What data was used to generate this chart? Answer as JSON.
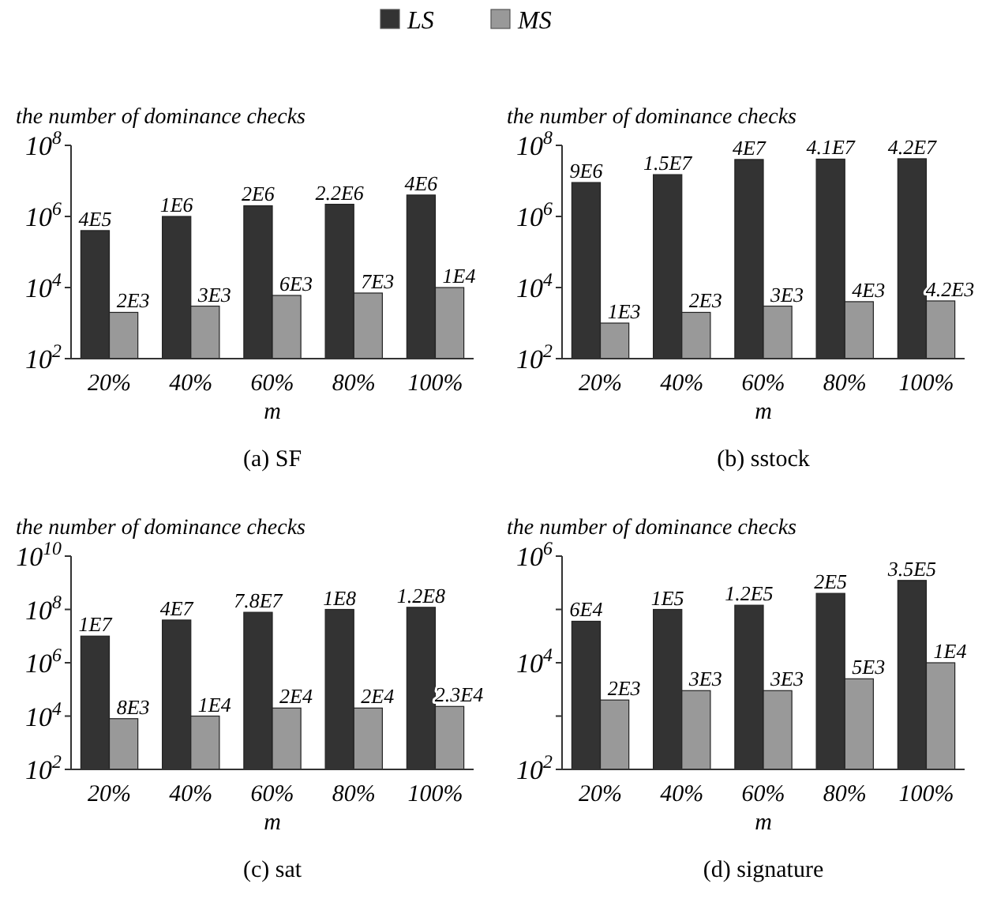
{
  "chart_data": [
    {
      "type": "bar",
      "title": "(a) SF",
      "xlabel": "m",
      "ylabel": "the number of dominance checks",
      "categories": [
        "20%",
        "40%",
        "60%",
        "80%",
        "100%"
      ],
      "log": "y",
      "ylim": [
        100,
        100000000
      ],
      "yticks": [
        {
          "value": 100,
          "label": "10$^{2}$"
        },
        {
          "value": 10000,
          "label": "10$^{4}$"
        },
        {
          "value": 1000000,
          "label": "10$^{6}$"
        },
        {
          "value": 100000000,
          "label": "10$^{8}$"
        }
      ],
      "legend": "top",
      "grid": false,
      "series": [
        {
          "name": "LS",
          "color": "#333333",
          "values": [
            400000,
            1000000,
            2000000,
            2200000,
            4000000
          ],
          "value_labels": [
            "4E5",
            "1E6",
            "2E6",
            "2.2E6",
            "4E6"
          ]
        },
        {
          "name": "MS",
          "color": "#999999",
          "values": [
            2000,
            3000,
            6000,
            7000,
            10000
          ],
          "value_labels": [
            "2E3",
            "3E3",
            "6E3",
            "7E3",
            "1E4"
          ]
        }
      ]
    },
    {
      "type": "bar",
      "title": "(b) sstock",
      "xlabel": "m",
      "ylabel": "the number of dominance checks",
      "categories": [
        "20%",
        "40%",
        "60%",
        "80%",
        "100%"
      ],
      "log": "y",
      "ylim": [
        100,
        100000000
      ],
      "yticks": [
        {
          "value": 100,
          "label": "10$^{2}$"
        },
        {
          "value": 10000,
          "label": "10$^{4}$"
        },
        {
          "value": 1000000,
          "label": "10$^{6}$"
        },
        {
          "value": 100000000,
          "label": "10$^{8}$"
        }
      ],
      "grid": false,
      "series": [
        {
          "color": "#333333",
          "values": [
            9000000,
            15000000,
            40000000,
            41000000,
            42000000
          ],
          "value_labels": [
            "9E6",
            "1.5E7",
            "4E7",
            "4.1E7",
            "4.2E7"
          ]
        },
        {
          "color": "#999999",
          "values": [
            1000,
            2000,
            3000,
            4000,
            4200
          ],
          "value_labels": [
            "1E3",
            "2E3",
            "3E3",
            "4E3",
            "4.2E3"
          ]
        }
      ]
    },
    {
      "type": "bar",
      "title": "(c) sat",
      "xlabel": "m",
      "ylabel": "the number of dominance checks",
      "categories": [
        "20%",
        "40%",
        "60%",
        "80%",
        "100%"
      ],
      "log": "y",
      "ylim": [
        100,
        10000000000
      ],
      "yticks": [
        {
          "value": 100,
          "label": "10$^{2}$"
        },
        {
          "value": 10000,
          "label": "10$^{4}$"
        },
        {
          "value": 1000000,
          "label": "10$^{6}$"
        },
        {
          "value": 100000000,
          "label": "10$^{8}$"
        },
        {
          "value": 10000000000,
          "label": "10$^{10}$"
        }
      ],
      "grid": false,
      "series": [
        {
          "color": "#333333",
          "values": [
            10000000,
            40000000,
            78000000,
            100000000,
            120000000
          ],
          "value_labels": [
            "1E7",
            "4E7",
            "7.8E7",
            "1E8",
            "1.2E8"
          ]
        },
        {
          "color": "#999999",
          "values": [
            8000,
            10000,
            20000,
            20000,
            23000
          ],
          "value_labels": [
            "8E3",
            "1E4",
            "2E4",
            "2E4",
            "2.3E4"
          ]
        }
      ]
    },
    {
      "type": "bar",
      "title": "(d) signature",
      "xlabel": "m",
      "ylabel": "the number of dominance checks",
      "categories": [
        "20%",
        "40%",
        "60%",
        "80%",
        "100%"
      ],
      "log": "y",
      "ylim": [
        100,
        1000000
      ],
      "yticks": [
        {
          "value": 100,
          "label": "10$^{2}$"
        },
        {
          "value": 1000,
          "label": null
        },
        {
          "value": 10000,
          "label": "10$^{4}$"
        },
        {
          "value": 100000,
          "label": null
        },
        {
          "value": 1000000,
          "label": "10$^{6}$"
        }
      ],
      "grid": false,
      "series": [
        {
          "color": "#333333",
          "values": [
            60000,
            100000,
            120000,
            200000,
            350000
          ],
          "value_labels": [
            "6E4",
            "1E5",
            "1.2E5",
            "2E5",
            "3.5E5"
          ]
        },
        {
          "color": "#999999",
          "values": [
            2000,
            3000,
            3000,
            5000,
            10000
          ],
          "value_labels": [
            "2E3",
            "3E3",
            "3E3",
            "5E3",
            "1E4"
          ]
        }
      ]
    }
  ]
}
